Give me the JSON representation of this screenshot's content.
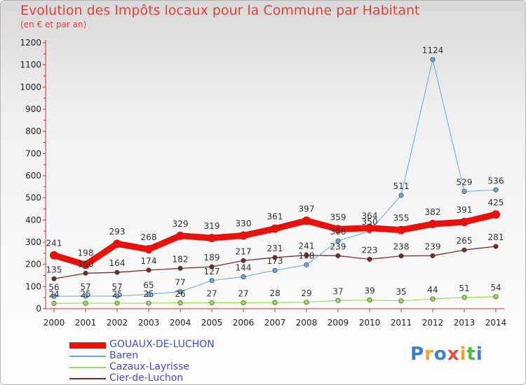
{
  "chart_data": {
    "type": "line",
    "title": "Evolution des Impôts locaux pour la Commune par Habitant",
    "subtitle": "(en € et par an)",
    "xlabel": "",
    "ylabel": "",
    "ylim": [
      0,
      1200
    ],
    "yticks": [
      0,
      100,
      200,
      300,
      400,
      500,
      600,
      700,
      800,
      900,
      1000,
      1100,
      1200
    ],
    "categories": [
      "2000",
      "2001",
      "2002",
      "2003",
      "2004",
      "2005",
      "2006",
      "2007",
      "2008",
      "2009",
      "2010",
      "2011",
      "2012",
      "2013",
      "2014"
    ],
    "grid": false,
    "legend_position": "bottom-left",
    "series": [
      {
        "name": "GOUAUX-DE-LUCHON",
        "color": "#e8120c",
        "values": [
          241,
          198,
          293,
          268,
          329,
          319,
          330,
          361,
          397,
          359,
          364,
          355,
          382,
          391,
          425
        ]
      },
      {
        "name": "Baren",
        "color": "#6aa7d8",
        "values": [
          56,
          57,
          57,
          65,
          77,
          127,
          144,
          173,
          198,
          306,
          350,
          511,
          1124,
          529,
          536
        ]
      },
      {
        "name": "Cazaux-Layrisse",
        "color": "#99dd55",
        "values": [
          24,
          25,
          25,
          25,
          26,
          27,
          27,
          28,
          29,
          37,
          39,
          35,
          44,
          51,
          54
        ]
      },
      {
        "name": "Cier-de-Luchon",
        "color": "#7a2a2a",
        "values": [
          135,
          160,
          164,
          174,
          182,
          189,
          217,
          231,
          241,
          239,
          223,
          238,
          239,
          265,
          281
        ]
      }
    ]
  },
  "legend": {
    "items": [
      {
        "label": "GOUAUX-DE-LUCHON",
        "color": "#3a4fe0"
      },
      {
        "label": "Baren",
        "color": "#3a4fe0"
      },
      {
        "label": "Cazaux-Layrisse",
        "color": "#3a4fe0"
      },
      {
        "label": "Cier-de-Luchon",
        "color": "#3a4fe0"
      }
    ]
  },
  "logo": {
    "letters": [
      "P",
      "r",
      "o",
      "x",
      "i",
      "t",
      "i"
    ],
    "colors": [
      "#3b7fd4",
      "#f0a030",
      "#3b7fd4",
      "#e84c3c",
      "#f0a030",
      "#56b847",
      "#3b7fd4"
    ]
  }
}
